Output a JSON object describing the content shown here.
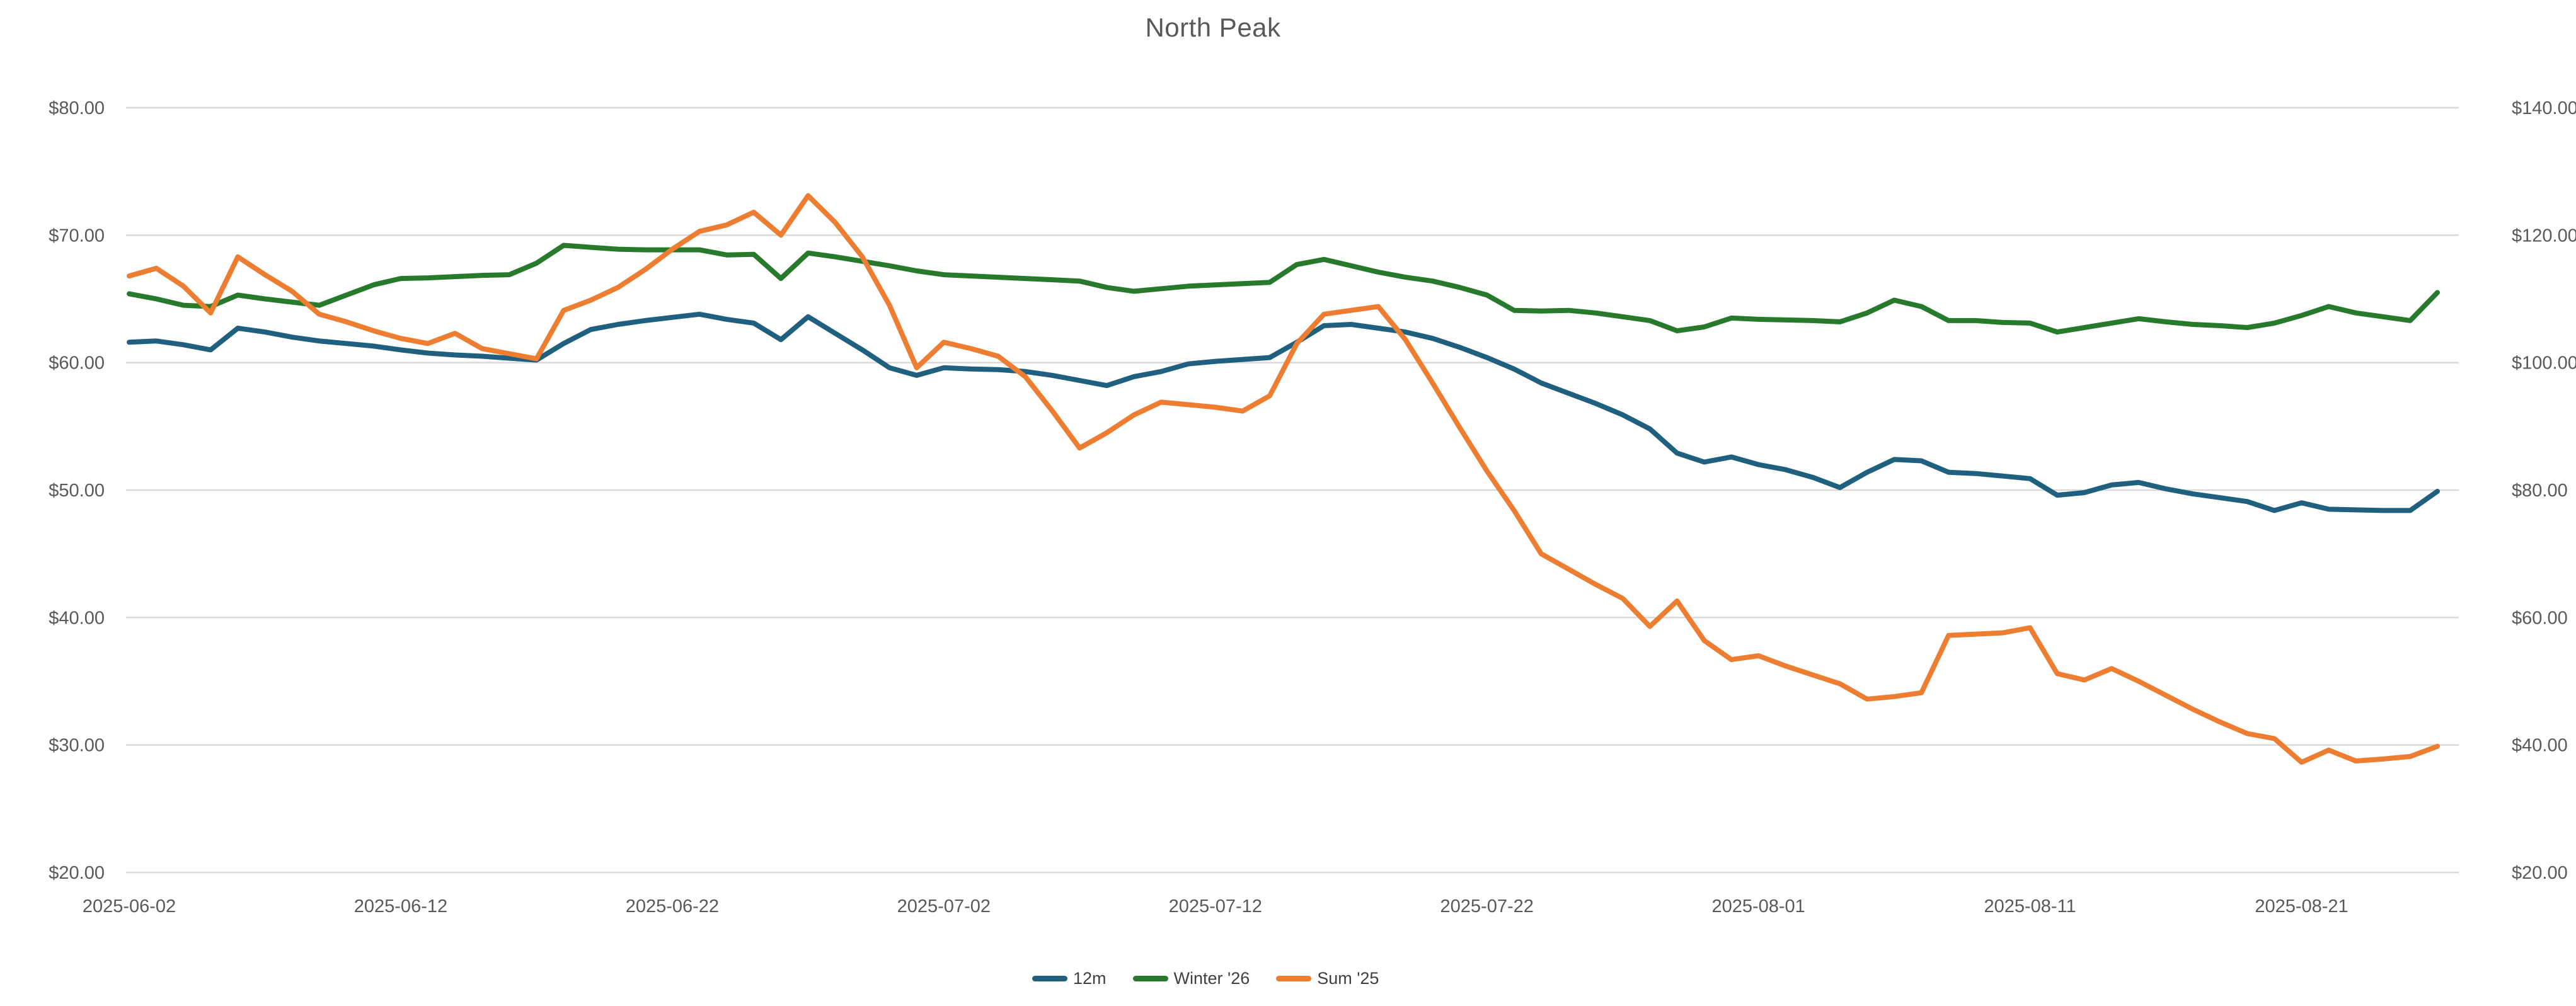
{
  "title": "North Peak",
  "chart": {
    "background": "#ffffff",
    "grid_color": "#d9d9d9",
    "axis_text_color": "#595959",
    "legend_text_color": "#3f3f3f"
  },
  "chart_data": {
    "type": "line",
    "title": "North Peak",
    "grid": true,
    "legend_position": "bottom",
    "left_axis": {
      "min": 20,
      "max": 80,
      "tick_step": 10,
      "tick_labels": [
        "$20.00",
        "$30.00",
        "$40.00",
        "$50.00",
        "$60.00",
        "$70.00",
        "$80.00"
      ]
    },
    "right_axis": {
      "min": 20,
      "max": 140,
      "tick_step": 20,
      "tick_labels": [
        "$20.00",
        "$40.00",
        "$60.00",
        "$80.00",
        "$100.00",
        "$120.00",
        "$140.00"
      ]
    },
    "x_tick_labels": [
      "2025-06-02",
      "2025-06-12",
      "2025-06-22",
      "2025-07-02",
      "2025-07-12",
      "2025-07-22",
      "2025-08-01",
      "2025-08-11",
      "2025-08-21"
    ],
    "x": [
      "2025-06-02",
      "2025-06-03",
      "2025-06-04",
      "2025-06-05",
      "2025-06-06",
      "2025-06-07",
      "2025-06-08",
      "2025-06-09",
      "2025-06-10",
      "2025-06-11",
      "2025-06-12",
      "2025-06-13",
      "2025-06-14",
      "2025-06-15",
      "2025-06-16",
      "2025-06-17",
      "2025-06-18",
      "2025-06-19",
      "2025-06-20",
      "2025-06-21",
      "2025-06-22",
      "2025-06-23",
      "2025-06-24",
      "2025-06-25",
      "2025-06-26",
      "2025-06-27",
      "2025-06-28",
      "2025-06-29",
      "2025-06-30",
      "2025-07-01",
      "2025-07-02",
      "2025-07-03",
      "2025-07-04",
      "2025-07-05",
      "2025-07-06",
      "2025-07-07",
      "2025-07-08",
      "2025-07-09",
      "2025-07-10",
      "2025-07-11",
      "2025-07-12",
      "2025-07-13",
      "2025-07-14",
      "2025-07-15",
      "2025-07-16",
      "2025-07-17",
      "2025-07-18",
      "2025-07-19",
      "2025-07-20",
      "2025-07-21",
      "2025-07-22",
      "2025-07-23",
      "2025-07-24",
      "2025-07-25",
      "2025-07-26",
      "2025-07-27",
      "2025-07-28",
      "2025-07-29",
      "2025-07-30",
      "2025-07-31",
      "2025-08-01",
      "2025-08-02",
      "2025-08-03",
      "2025-08-04",
      "2025-08-05",
      "2025-08-06",
      "2025-08-07",
      "2025-08-08",
      "2025-08-09",
      "2025-08-10",
      "2025-08-11",
      "2025-08-12",
      "2025-08-13",
      "2025-08-14",
      "2025-08-15",
      "2025-08-16",
      "2025-08-17",
      "2025-08-18",
      "2025-08-19",
      "2025-08-20",
      "2025-08-21",
      "2025-08-22",
      "2025-08-23",
      "2025-08-24",
      "2025-08-25",
      "2025-08-26"
    ],
    "series": [
      {
        "name": "12m",
        "color": "#20607f",
        "axis": "left",
        "values": [
          61.6,
          61.7,
          61.4,
          61.0,
          62.7,
          62.4,
          62.0,
          61.7,
          61.5,
          61.3,
          61.0,
          60.75,
          60.6,
          60.5,
          60.35,
          60.2,
          61.5,
          62.6,
          63.0,
          63.3,
          63.55,
          63.8,
          63.4,
          63.1,
          61.8,
          63.6,
          62.3,
          61.0,
          59.6,
          59.0,
          59.6,
          59.5,
          59.45,
          59.3,
          59.0,
          58.6,
          58.2,
          58.9,
          59.3,
          59.9,
          60.1,
          60.25,
          60.4,
          61.6,
          62.9,
          63.0,
          62.7,
          62.4,
          61.9,
          61.2,
          60.4,
          59.5,
          58.4,
          57.6,
          56.8,
          55.9,
          54.8,
          52.9,
          52.2,
          52.6,
          52.0,
          51.6,
          51.0,
          50.2,
          51.4,
          52.4,
          52.3,
          51.4,
          51.3,
          51.1,
          50.9,
          49.6,
          49.8,
          50.4,
          50.6,
          50.1,
          49.7,
          49.4,
          49.1,
          48.4,
          49.0,
          48.5,
          48.45,
          48.4,
          48.4,
          49.9
        ]
      },
      {
        "name": "Winter '26",
        "color": "#277a2b",
        "axis": "left",
        "values": [
          65.4,
          65.0,
          64.5,
          64.4,
          65.3,
          65.0,
          64.75,
          64.5,
          65.3,
          66.1,
          66.6,
          66.65,
          66.75,
          66.85,
          66.9,
          67.8,
          69.2,
          69.05,
          68.9,
          68.85,
          68.85,
          68.85,
          68.45,
          68.5,
          66.6,
          68.6,
          68.3,
          67.95,
          67.6,
          67.2,
          66.9,
          66.8,
          66.7,
          66.6,
          66.5,
          66.4,
          65.9,
          65.6,
          65.8,
          66.0,
          66.1,
          66.2,
          66.3,
          67.7,
          68.1,
          67.6,
          67.1,
          66.7,
          66.4,
          65.9,
          65.3,
          64.1,
          64.05,
          64.1,
          63.9,
          63.6,
          63.3,
          62.5,
          62.8,
          63.5,
          63.4,
          63.35,
          63.3,
          63.2,
          63.9,
          64.9,
          64.4,
          63.3,
          63.3,
          63.15,
          63.1,
          62.4,
          62.75,
          63.1,
          63.45,
          63.2,
          63.0,
          62.9,
          62.75,
          63.1,
          63.7,
          64.4,
          63.9,
          63.6,
          63.3,
          65.5
        ]
      },
      {
        "name": "Sum '25",
        "color": "#ed7d31",
        "axis": "left",
        "values": [
          66.8,
          67.4,
          66.0,
          63.9,
          68.3,
          66.9,
          65.6,
          63.8,
          63.2,
          62.5,
          61.9,
          61.5,
          62.3,
          61.1,
          60.7,
          60.3,
          64.1,
          64.9,
          65.9,
          67.3,
          68.9,
          70.3,
          70.8,
          71.8,
          70.0,
          73.1,
          71.0,
          68.3,
          64.5,
          59.6,
          61.6,
          61.1,
          60.5,
          58.9,
          56.2,
          53.3,
          54.5,
          55.9,
          56.9,
          56.7,
          56.5,
          56.2,
          57.4,
          61.5,
          63.8,
          64.1,
          64.4,
          61.8,
          58.4,
          54.9,
          51.5,
          48.4,
          45.0,
          43.8,
          42.6,
          41.5,
          39.3,
          41.3,
          38.2,
          36.7,
          37.0,
          36.2,
          35.5,
          34.8,
          33.6,
          33.8,
          34.1,
          38.6,
          38.7,
          38.8,
          39.2,
          35.6,
          35.1,
          36.0,
          35.0,
          33.9,
          32.8,
          31.8,
          30.9,
          30.5,
          28.65,
          29.6,
          28.75,
          28.9,
          29.1,
          29.9
        ]
      }
    ]
  }
}
